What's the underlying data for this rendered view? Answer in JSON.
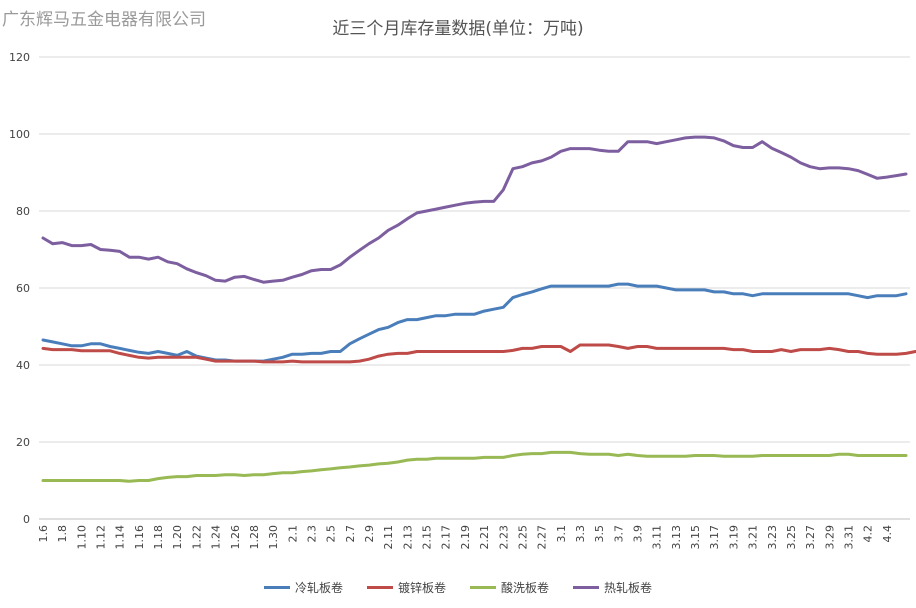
{
  "watermark": "广东辉马五金电器有限公司",
  "chart_data": {
    "type": "line",
    "title": "近三个月库存量数据(单位：万吨)",
    "xlabel": "",
    "ylabel": "",
    "ylim": [
      0,
      120
    ],
    "yticks": [
      0,
      20,
      40,
      60,
      80,
      100,
      120
    ],
    "grid": "horizontal",
    "legend": "bottom",
    "xticks": [
      "1.6",
      "1.8",
      "1.10",
      "1.12",
      "1.14",
      "1.16",
      "1.18",
      "1.20",
      "1.22",
      "1.24",
      "1.26",
      "1.28",
      "1.30",
      "2.1",
      "2.3",
      "2.5",
      "2.7",
      "2.9",
      "2.11",
      "2.13",
      "2.15",
      "2.17",
      "2.19",
      "2.21",
      "2.23",
      "2.25",
      "2.27",
      "3.1",
      "3.3",
      "3.5",
      "3.7",
      "3.9",
      "3.11",
      "3.13",
      "3.15",
      "3.17",
      "3.19",
      "3.21",
      "3.23",
      "3.25",
      "3.27",
      "3.29",
      "3.31",
      "4.2",
      "4.4"
    ],
    "series": [
      {
        "name": "冷轧板卷",
        "color": "#4a7ebb",
        "values": [
          46.5,
          46.0,
          45.5,
          45.0,
          45.0,
          45.5,
          45.5,
          44.8,
          44.3,
          43.8,
          43.3,
          43.0,
          43.5,
          43.0,
          42.5,
          43.5,
          42.3,
          41.8,
          41.3,
          41.3,
          41.0,
          41.0,
          41.0,
          41.0,
          41.5,
          42.0,
          42.8,
          42.8,
          43.0,
          43.0,
          43.5,
          43.5,
          45.5,
          46.8,
          48.0,
          49.2,
          49.8,
          51.0,
          51.8,
          51.8,
          52.3,
          52.8,
          52.8,
          53.2,
          53.2,
          53.2,
          54.0,
          54.5,
          55.0,
          57.5,
          58.3,
          59.0,
          59.8,
          60.5,
          60.5,
          60.5,
          60.5,
          60.5,
          60.5,
          60.5,
          61.0,
          61.0,
          60.5,
          60.5,
          60.5,
          60.0,
          59.5,
          59.5,
          59.5,
          59.5,
          59.0,
          59.0,
          58.5,
          58.5,
          58.0,
          58.5,
          58.5,
          58.5,
          58.5,
          58.5,
          58.5,
          58.5,
          58.5,
          58.5,
          58.5,
          58.0,
          57.5,
          58.0,
          58.0,
          58.0,
          58.5
        ]
      },
      {
        "name": "镀锌板卷",
        "color": "#be4b48",
        "values": [
          44.3,
          44.0,
          44.0,
          44.0,
          43.7,
          43.7,
          43.7,
          43.7,
          43.0,
          42.5,
          42.0,
          41.8,
          42.0,
          42.0,
          42.0,
          42.0,
          42.0,
          41.5,
          41.0,
          41.0,
          41.0,
          41.0,
          41.0,
          40.8,
          40.8,
          40.8,
          41.0,
          40.8,
          40.8,
          40.8,
          40.8,
          40.8,
          40.8,
          41.0,
          41.5,
          42.3,
          42.8,
          43.0,
          43.0,
          43.5,
          43.5,
          43.5,
          43.5,
          43.5,
          43.5,
          43.5,
          43.5,
          43.5,
          43.5,
          43.8,
          44.3,
          44.3,
          44.8,
          44.8,
          44.8,
          43.5,
          45.2,
          45.2,
          45.2,
          45.2,
          44.8,
          44.3,
          44.8,
          44.8,
          44.3,
          44.3,
          44.3,
          44.3,
          44.3,
          44.3,
          44.3,
          44.3,
          44.0,
          44.0,
          43.5,
          43.5,
          43.5,
          44.0,
          43.5,
          44.0,
          44.0,
          44.0,
          44.3,
          44.0,
          43.5,
          43.5,
          43.0,
          42.8,
          42.8,
          42.8,
          43.0,
          43.5
        ]
      },
      {
        "name": "酸洗板卷",
        "color": "#98b954",
        "values": [
          10.0,
          10.0,
          10.0,
          10.0,
          10.0,
          10.0,
          10.0,
          10.0,
          10.0,
          9.8,
          10.0,
          10.0,
          10.5,
          10.8,
          11.0,
          11.0,
          11.3,
          11.3,
          11.3,
          11.5,
          11.5,
          11.3,
          11.5,
          11.5,
          11.8,
          12.0,
          12.0,
          12.3,
          12.5,
          12.8,
          13.0,
          13.3,
          13.5,
          13.8,
          14.0,
          14.3,
          14.5,
          14.8,
          15.3,
          15.5,
          15.5,
          15.8,
          15.8,
          15.8,
          15.8,
          15.8,
          16.0,
          16.0,
          16.0,
          16.5,
          16.8,
          17.0,
          17.0,
          17.3,
          17.3,
          17.3,
          17.0,
          16.8,
          16.8,
          16.8,
          16.5,
          16.8,
          16.5,
          16.3,
          16.3,
          16.3,
          16.3,
          16.3,
          16.5,
          16.5,
          16.5,
          16.3,
          16.3,
          16.3,
          16.3,
          16.5,
          16.5,
          16.5,
          16.5,
          16.5,
          16.5,
          16.5,
          16.5,
          16.8,
          16.8,
          16.5,
          16.5,
          16.5,
          16.5,
          16.5,
          16.5
        ]
      },
      {
        "name": "热轧板卷",
        "color": "#7d5fa0",
        "values": [
          73.0,
          71.5,
          71.8,
          71.0,
          71.0,
          71.3,
          70.0,
          69.8,
          69.5,
          68.0,
          68.0,
          67.5,
          68.0,
          66.8,
          66.3,
          65.0,
          64.0,
          63.2,
          62.0,
          61.8,
          62.8,
          63.0,
          62.2,
          61.5,
          61.8,
          62.0,
          62.8,
          63.5,
          64.5,
          64.8,
          64.8,
          66.0,
          68.0,
          69.8,
          71.5,
          73.0,
          75.0,
          76.3,
          78.0,
          79.5,
          80.0,
          80.5,
          81.0,
          81.5,
          82.0,
          82.3,
          82.5,
          82.5,
          85.5,
          91.0,
          91.5,
          92.5,
          93.0,
          94.0,
          95.5,
          96.2,
          96.2,
          96.2,
          95.8,
          95.5,
          95.5,
          98.0,
          98.0,
          98.0,
          97.5,
          98.0,
          98.5,
          99.0,
          99.2,
          99.2,
          99.0,
          98.2,
          97.0,
          96.5,
          96.5,
          98.0,
          96.3,
          95.2,
          94.0,
          92.5,
          91.5,
          91.0,
          91.2,
          91.2,
          91.0,
          90.5,
          89.5,
          88.5,
          88.8,
          89.2,
          89.6
        ]
      }
    ]
  }
}
